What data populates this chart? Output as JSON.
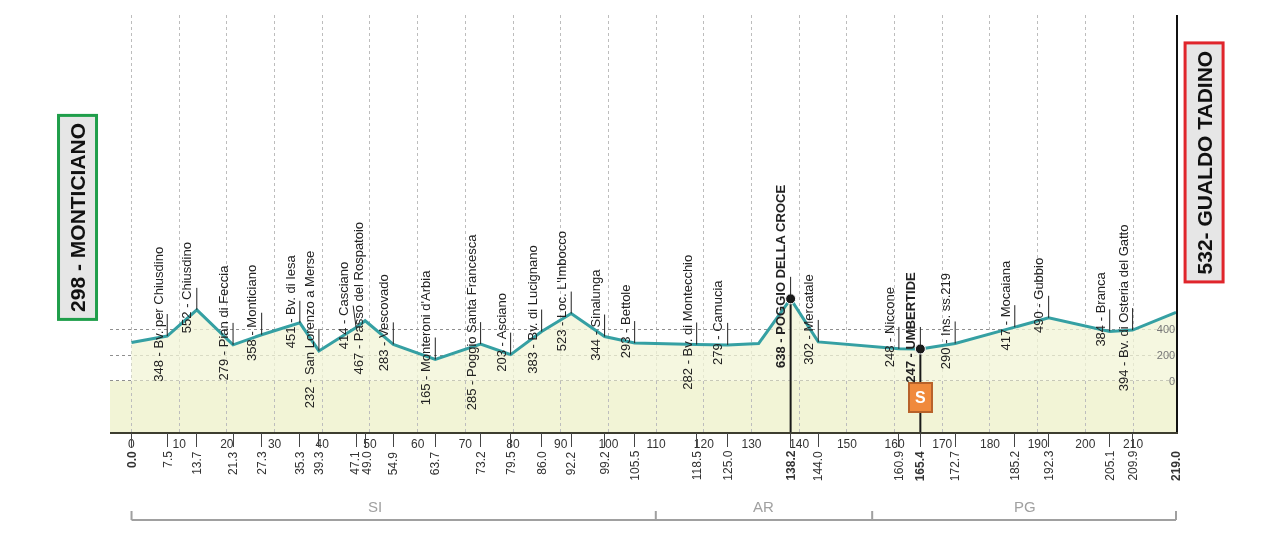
{
  "chart_data": {
    "type": "area",
    "x": [
      0,
      7.5,
      13.7,
      21.3,
      27.3,
      35.3,
      39.3,
      47.1,
      49.0,
      54.9,
      63.7,
      73.2,
      79.5,
      86.0,
      92.2,
      99.2,
      105.5,
      118.5,
      125.0,
      131.5,
      138.2,
      144.0,
      160.9,
      165.4,
      172.7,
      185.2,
      192.3,
      205.1,
      209.9,
      219.0
    ],
    "values": [
      298,
      348,
      552,
      279,
      358,
      451,
      232,
      414,
      467,
      283,
      165,
      285,
      203,
      383,
      523,
      344,
      293,
      282,
      279,
      290,
      638,
      302,
      248,
      247,
      290,
      417,
      490,
      384,
      394,
      532
    ],
    "color": "#35a0a3",
    "xlim": [
      -4.5,
      219
    ],
    "xticks": [
      0,
      10,
      20,
      30,
      40,
      50,
      60,
      70,
      80,
      90,
      100,
      110,
      120,
      130,
      140,
      150,
      160,
      170,
      180,
      190,
      200,
      210
    ],
    "x2lim": [
      -4.5,
      219
    ],
    "x2ticks": [
      {
        "value": 0,
        "label": "0.0"
      },
      7.5,
      13.7,
      21.3,
      27.3,
      35.3,
      39.3,
      47.1,
      {
        "value": 49,
        "label": "49.0"
      },
      54.9,
      63.7,
      73.2,
      79.5,
      {
        "value": 86,
        "label": "86.0"
      },
      92.2,
      99.2,
      105.5,
      118.5,
      {
        "value": 125,
        "label": "125.0"
      },
      138.2,
      {
        "value": 144,
        "label": "144.0"
      },
      160.9,
      165.4,
      172.7,
      185.2,
      192.3,
      205.1,
      209.9,
      {
        "value": 219,
        "label": "219.0"
      }
    ],
    "ylim": [
      -400,
      2850
    ],
    "yticks": [
      0,
      200,
      400
    ],
    "grid": true,
    "ref_lines": [
      {
        "axis": "x",
        "value": 138.2,
        "color": "#1a1a1a"
      },
      {
        "axis": "x",
        "value": 165.4,
        "label": "S",
        "color": "#1a1a1a"
      }
    ],
    "bands": [
      {
        "axis": "y",
        "from": -400,
        "to": 0,
        "color": "#f2f4d6"
      }
    ],
    "annotations": [
      {
        "text": "298 - MONTICIANO",
        "x": 0,
        "y": 298
      },
      {
        "text": "348 - Bv. per Chiusdino",
        "x": 7.5,
        "y": 348
      },
      {
        "text": "552 - Chiusdino",
        "x": 13.7,
        "y": 552
      },
      {
        "text": "279 - Pian di Feccia",
        "x": 21.3,
        "y": 279
      },
      {
        "text": "358 - Monticiano",
        "x": 27.3,
        "y": 358
      },
      {
        "text": "451 - Bv. di Iesa",
        "x": 35.3,
        "y": 451
      },
      {
        "text": "232 - San Lorenzo a Merse",
        "x": 39.3,
        "y": 232
      },
      {
        "text": "414 - Casciano",
        "x": 47.1,
        "y": 414
      },
      {
        "text": "467 - Passo del Rospatoio",
        "x": 49.0,
        "y": 467
      },
      {
        "text": "283 - Vescovado",
        "x": 54.9,
        "y": 283
      },
      {
        "text": "165 - Monteroni d'Arbia",
        "x": 63.7,
        "y": 165
      },
      {
        "text": "285 - Poggio Santa Francesca",
        "x": 73.2,
        "y": 285
      },
      {
        "text": "203 - Asciano",
        "x": 79.5,
        "y": 203
      },
      {
        "text": "383 - Bv. di Lucignano",
        "x": 86.0,
        "y": 383
      },
      {
        "text": "523 - Loc. L'Imbocco",
        "x": 92.2,
        "y": 523
      },
      {
        "text": "344 - Sinalunga",
        "x": 99.2,
        "y": 344
      },
      {
        "text": "293 - Bettole",
        "x": 105.5,
        "y": 293
      },
      {
        "text": "282 - Bv. di Montecchio",
        "x": 118.5,
        "y": 282
      },
      {
        "text": "279 - Camucia",
        "x": 125.0,
        "y": 279
      },
      {
        "text": "638 - POGGIO DELLA CROCE",
        "x": 138.2,
        "y": 638
      },
      {
        "text": "302 - Mercatale",
        "x": 144.0,
        "y": 302
      },
      {
        "text": "248 - Niccone",
        "x": 160.9,
        "y": 248
      },
      {
        "text": "247 - UMBERTIDE",
        "x": 165.4,
        "y": 247
      },
      {
        "text": "290 - Ins. ss.219",
        "x": 172.7,
        "y": 290
      },
      {
        "text": "417 - Mocaiana",
        "x": 185.2,
        "y": 417
      },
      {
        "text": "490 - Gubbio",
        "x": 192.3,
        "y": 490
      },
      {
        "text": "384 - Branca",
        "x": 205.1,
        "y": 384
      },
      {
        "text": "394 - Bv. di Osteria del Gatto",
        "x": 209.9,
        "y": 394
      },
      {
        "text": "532- GUALDO TADINO",
        "x": 219.0,
        "y": 532
      },
      "SI",
      "AR",
      "PG"
    ]
  }
}
